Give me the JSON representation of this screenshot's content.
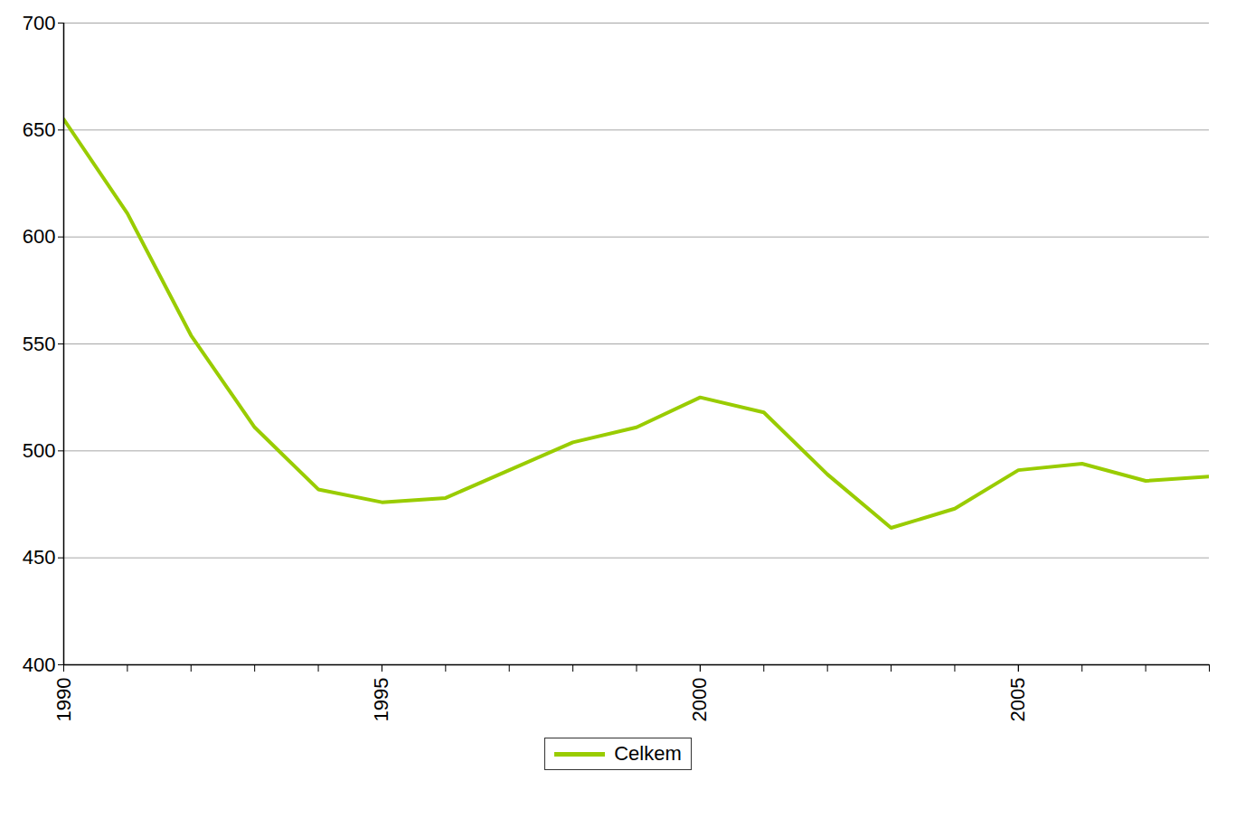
{
  "chart_data": {
    "type": "line",
    "x": [
      1990,
      1991,
      1992,
      1993,
      1994,
      1995,
      1996,
      1997,
      1998,
      1999,
      2000,
      2001,
      2002,
      2003,
      2004,
      2005,
      2006,
      2007,
      2008
    ],
    "series": [
      {
        "name": "Celkem",
        "color": "#99cc00",
        "values": [
          655,
          611,
          554,
          511,
          482,
          476,
          478,
          491,
          504,
          511,
          525,
          518,
          489,
          464,
          473,
          491,
          494,
          486,
          488
        ]
      }
    ],
    "xlim": [
      1990,
      2008
    ],
    "xticks": [
      1990,
      1995,
      2000,
      2005
    ],
    "ylim": [
      400,
      700
    ],
    "yticks": [
      400,
      450,
      500,
      550,
      600,
      650,
      700
    ],
    "grid": true,
    "legend": "bottom"
  }
}
